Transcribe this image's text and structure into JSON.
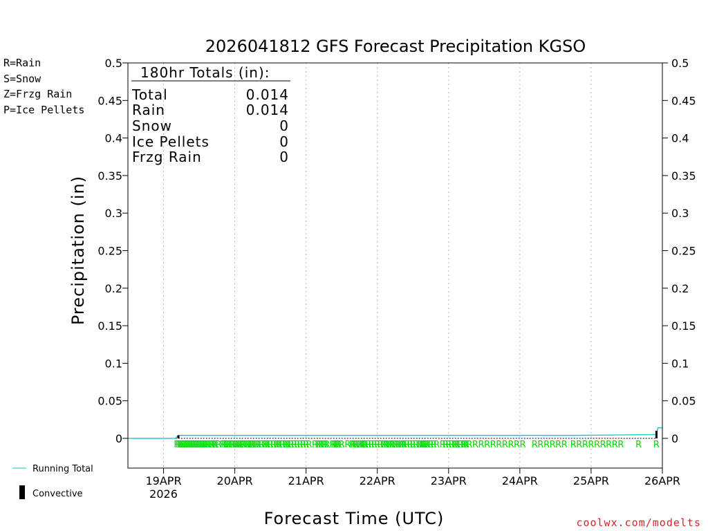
{
  "chart_data": {
    "type": "line",
    "title": "2026041812 GFS Forecast Precipitation KGSO",
    "xlabel": "Forecast Time (UTC)",
    "ylabel": "Precipitation (in)",
    "ylim": [
      -0.04,
      0.5
    ],
    "y_ticks": [
      "0",
      "0.05",
      "0.1",
      "0.15",
      "0.2",
      "0.25",
      "0.3",
      "0.35",
      "0.4",
      "0.45",
      "0.5"
    ],
    "x_range_hours": [
      0,
      180
    ],
    "x_ticks": [
      {
        "label": "19APR",
        "sublabel": "2026",
        "hour": 12
      },
      {
        "label": "20APR",
        "hour": 36
      },
      {
        "label": "21APR",
        "hour": 60
      },
      {
        "label": "22APR",
        "hour": 84
      },
      {
        "label": "23APR",
        "hour": 108
      },
      {
        "label": "24APR",
        "hour": 132
      },
      {
        "label": "25APR",
        "hour": 156
      },
      {
        "label": "26APR",
        "hour": 180
      }
    ],
    "series": [
      {
        "name": "Running Total",
        "color": "#00c8c8",
        "points": [
          [
            0,
            0
          ],
          [
            16,
            0
          ],
          [
            17,
            0.004
          ],
          [
            30,
            0.004
          ],
          [
            60,
            0.004
          ],
          [
            120,
            0.004
          ],
          [
            150,
            0.004
          ],
          [
            178,
            0.005
          ],
          [
            178.5,
            0.014
          ],
          [
            180,
            0.014
          ]
        ]
      }
    ],
    "convective": [
      {
        "hour": 17,
        "value": 0.004
      },
      {
        "hour": 178,
        "value": 0.01
      }
    ],
    "precip_type_hours": [
      16.5,
      17,
      17.5,
      18,
      18.5,
      19,
      19.5,
      20,
      20.5,
      21,
      21.5,
      22,
      22.5,
      23,
      23.5,
      24,
      24.5,
      25,
      25.5,
      26,
      26.5,
      27,
      28,
      28.5,
      29,
      29.5,
      30.5,
      32,
      32.5,
      33,
      33.5,
      34,
      35,
      35.5,
      36,
      36.5,
      37,
      37.5,
      38,
      38.5,
      39,
      40,
      40.5,
      41,
      41.5,
      42,
      43,
      43.5,
      44,
      45,
      46,
      46.5,
      47,
      48,
      49,
      50,
      50.5,
      51,
      52,
      53,
      53.5,
      54,
      55,
      56,
      57,
      58,
      59,
      60,
      61,
      63,
      64,
      64.5,
      65,
      66,
      66.5,
      67,
      69,
      69.5,
      70,
      70.5,
      71,
      72,
      74,
      75.5,
      76,
      76.5,
      77,
      78,
      78.5,
      79,
      79.5,
      80,
      81,
      82,
      83,
      84,
      85,
      86,
      86.5,
      87,
      88,
      88.5,
      89,
      90,
      90.5,
      91,
      92,
      92.5,
      93,
      94,
      95,
      96,
      97,
      98,
      98.5,
      99,
      99.5,
      100,
      100.5,
      101,
      102,
      103,
      104,
      106,
      107,
      108,
      109,
      110,
      110.5,
      111,
      112,
      113,
      113.5,
      114,
      115,
      117,
      119,
      121,
      123,
      125,
      127,
      129,
      131,
      133,
      137,
      139,
      141,
      143,
      145,
      147,
      150,
      152,
      154,
      156,
      158,
      160,
      162,
      164,
      166,
      172,
      178
    ],
    "precip_type_letter": "R",
    "precip_type_color": "#00dd00",
    "totals": {
      "header": "180hr Totals (in):",
      "rows": [
        {
          "label": "Total",
          "value": "0.014"
        },
        {
          "label": "Rain",
          "value": "0.014"
        },
        {
          "label": "Snow",
          "value": "0"
        },
        {
          "label": "Ice Pellets",
          "value": "0"
        },
        {
          "label": "Frzg Rain",
          "value": "0"
        }
      ]
    },
    "legend": [
      {
        "text": "R=Rain",
        "color": "#00cc00"
      },
      {
        "text": "S=Snow",
        "color": "#3030ff"
      },
      {
        "text": "Z=Frzg Rain",
        "color": "#ff8800"
      },
      {
        "text": "P=Ice Pellets",
        "color": "#ee1188"
      }
    ],
    "key": {
      "running_total": "Running Total",
      "convective": "Convective",
      "running_total_color": "#00c8c8"
    },
    "credit": "coolwx.com/modelts"
  }
}
